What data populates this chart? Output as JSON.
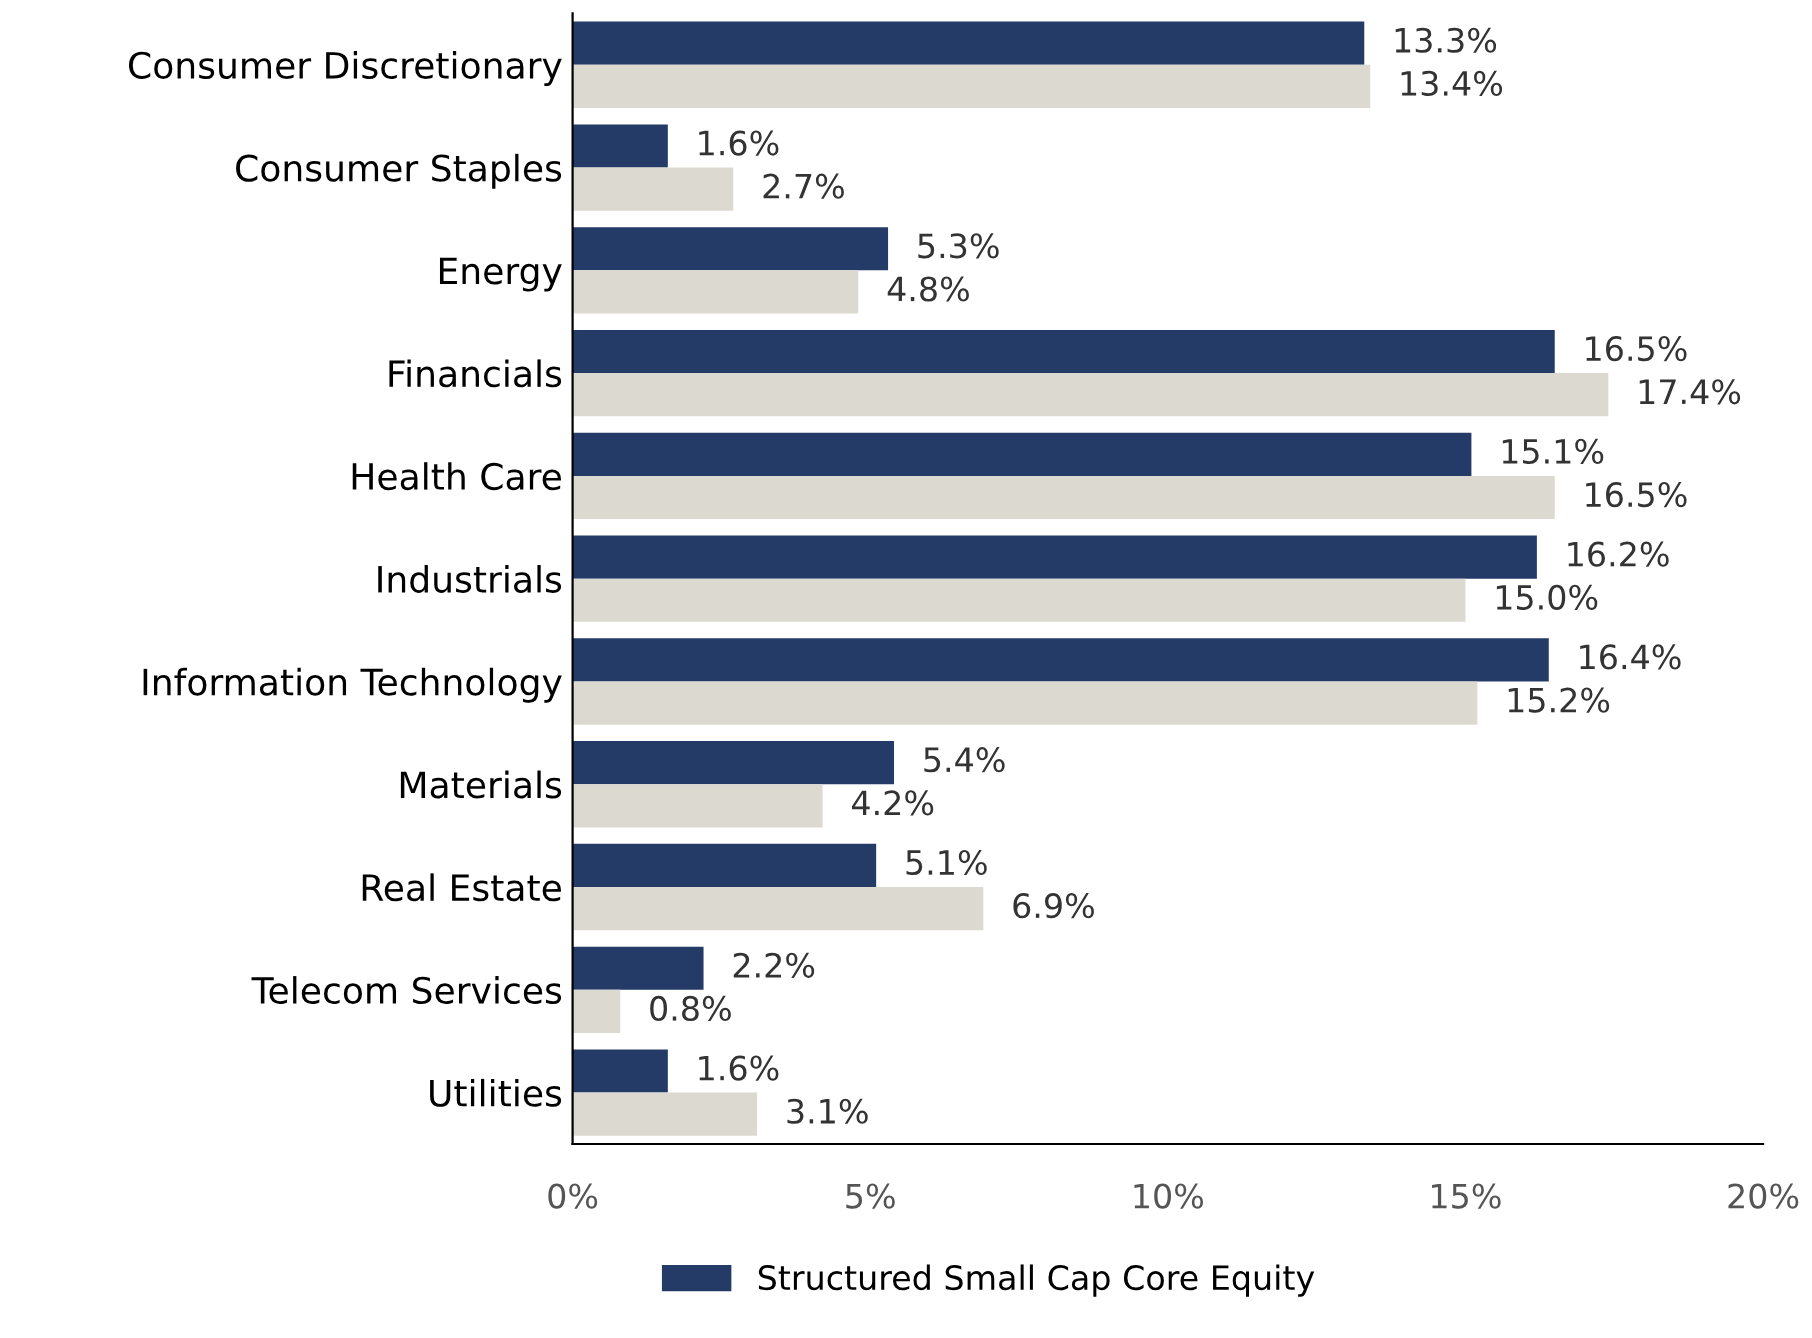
{
  "chart_data": {
    "type": "bar",
    "orientation": "horizontal",
    "categories": [
      "Consumer Discretionary",
      "Consumer Staples",
      "Energy",
      "Financials",
      "Health Care",
      "Industrials",
      "Information Technology",
      "Materials",
      "Real Estate",
      "Telecom Services",
      "Utilities"
    ],
    "series": [
      {
        "name": "Structured Small Cap Core Equity",
        "color": "#253b67",
        "values": [
          13.3,
          1.6,
          5.3,
          16.5,
          15.1,
          16.2,
          16.4,
          5.4,
          5.1,
          2.2,
          1.6
        ],
        "value_labels": [
          "13.3%",
          "1.6%",
          "5.3%",
          "16.5%",
          "15.1%",
          "16.2%",
          "16.4%",
          "5.4%",
          "5.1%",
          "2.2%",
          "1.6%"
        ]
      },
      {
        "color": "#dcdad0",
        "values": [
          13.4,
          2.7,
          4.8,
          17.4,
          16.5,
          15.0,
          15.2,
          4.2,
          6.9,
          0.8,
          3.1
        ],
        "value_labels": [
          "13.4%",
          "2.7%",
          "4.8%",
          "17.4%",
          "16.5%",
          "15.0%",
          "15.2%",
          "4.2%",
          "6.9%",
          "0.8%",
          "3.1%"
        ]
      }
    ],
    "xlim": [
      0,
      20
    ],
    "xticks": [
      {
        "value": 0,
        "label": "0%"
      },
      {
        "value": 5,
        "label": "5%"
      },
      {
        "value": 10,
        "label": "10%"
      },
      {
        "value": 15,
        "label": "15%"
      },
      {
        "value": 20,
        "label": "20%"
      }
    ],
    "grid": false,
    "legend": "bottom"
  }
}
